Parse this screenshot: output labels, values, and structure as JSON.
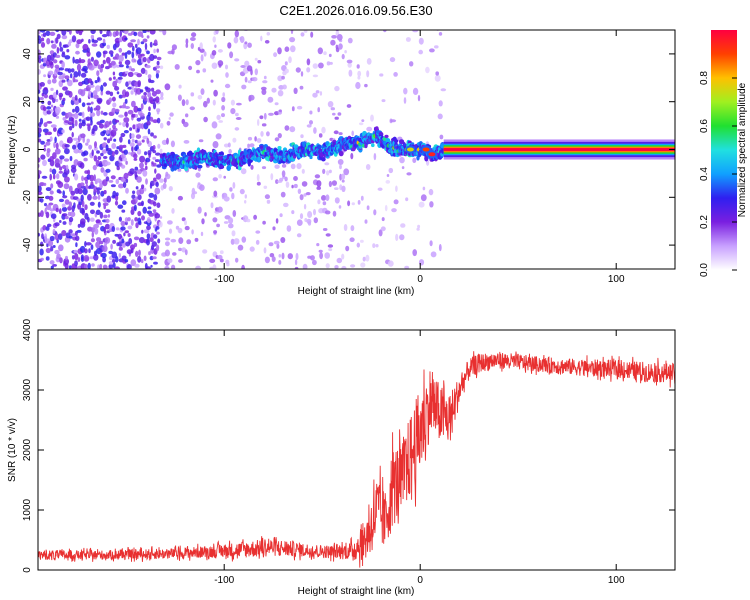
{
  "title": "C2E1.2026.016.09.56.E30",
  "chart_data": [
    {
      "type": "heatmap",
      "panel": "spectrogram",
      "xlabel": "Height of straight line (km)",
      "ylabel": "Frequency (Hz)",
      "xlim": [
        -195,
        130
      ],
      "ylim": [
        -50,
        50
      ],
      "xticks": [
        -100,
        0,
        100
      ],
      "xtick_labels": [
        "-100",
        "0",
        "100"
      ],
      "yticks": [
        -40,
        -20,
        0,
        20,
        40
      ],
      "ytick_labels": [
        "-40",
        "-20",
        "0",
        "20",
        "40"
      ],
      "description_regions": [
        {
          "x_range": [
            -195,
            -133
          ],
          "pattern": "dense purple noise, amplitude 0.05-0.25"
        },
        {
          "x_range": [
            -133,
            -35
          ],
          "pattern": "sparse faint noise, meandering signal trace near 0 Hz, amplitude 0.1-0.4"
        },
        {
          "x_range": [
            -35,
            12
          ],
          "pattern": "signal trace rising to ~5 Hz then converging to 0 Hz"
        },
        {
          "x_range": [
            12,
            130
          ],
          "pattern": "steady tone at 0 Hz, amplitude ~1.0"
        }
      ],
      "signal_trace": {
        "x": [
          -132,
          -120,
          -110,
          -100,
          -90,
          -80,
          -70,
          -60,
          -50,
          -40,
          -30,
          -22,
          -15,
          -8,
          0,
          6,
          12,
          130
        ],
        "freq_hz": [
          -4,
          -6,
          -3,
          -5,
          -4,
          -1,
          -3,
          0,
          -1,
          2,
          3,
          6,
          1,
          0,
          0,
          -2,
          0,
          0
        ]
      },
      "colorbar": {
        "label": "Normalized spectral amplitude",
        "range": [
          0,
          1
        ],
        "ticks": [
          0.0,
          0.2,
          0.4,
          0.6,
          0.8
        ],
        "tick_labels": [
          "0.0",
          "0.2",
          "0.4",
          "0.6",
          "0.8"
        ],
        "colormap": [
          "#ffffff",
          "#c8a0ff",
          "#7a1fe0",
          "#2f1ff0",
          "#10a0ff",
          "#20e0e0",
          "#20e030",
          "#a0f020",
          "#ffc000",
          "#ff4000",
          "#ff0040"
        ]
      }
    },
    {
      "type": "line",
      "panel": "snr",
      "xlabel": "Height of straight line (km)",
      "ylabel": "SNR (10 * v/v)",
      "xlim": [
        -195,
        130
      ],
      "ylim": [
        0,
        4000
      ],
      "xticks": [
        -100,
        0,
        100
      ],
      "xtick_labels": [
        "-100",
        "0",
        "100"
      ],
      "yticks": [
        0,
        1000,
        2000,
        3000,
        4000
      ],
      "ytick_labels": [
        "0",
        "1000",
        "2000",
        "3000",
        "4000"
      ],
      "color": "#e83030",
      "envelope": {
        "x": [
          -195,
          -160,
          -130,
          -110,
          -90,
          -75,
          -60,
          -45,
          -35,
          -28,
          -22,
          -18,
          -14,
          -10,
          -5,
          0,
          5,
          10,
          15,
          20,
          25,
          30,
          40,
          60,
          80,
          100,
          115,
          130
        ],
        "mean": [
          250,
          250,
          270,
          300,
          340,
          380,
          330,
          300,
          320,
          500,
          1000,
          800,
          1400,
          1500,
          1900,
          2300,
          2800,
          2600,
          2500,
          3000,
          3350,
          3450,
          3500,
          3430,
          3380,
          3350,
          3300,
          3280
        ],
        "noise": [
          80,
          80,
          90,
          100,
          140,
          150,
          120,
          110,
          150,
          350,
          600,
          500,
          700,
          600,
          700,
          750,
          600,
          500,
          450,
          250,
          180,
          160,
          140,
          130,
          140,
          150,
          170,
          160
        ]
      }
    }
  ]
}
